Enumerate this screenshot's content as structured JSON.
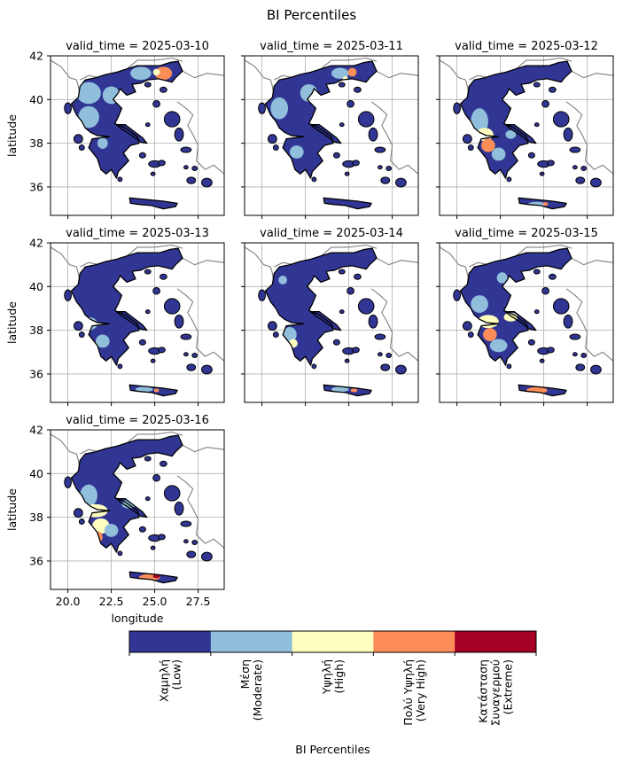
{
  "figure": {
    "title": "BI Percentiles"
  },
  "chart_data": [
    {
      "type": "heatmap",
      "title": "valid_time = 2025-03-10",
      "ylabel": "latitude",
      "xlabel": "",
      "xlim": [
        19,
        29
      ],
      "ylim": [
        34.7,
        42
      ],
      "grid": true,
      "dominant_categories": [
        "Χαμηλή (Low)",
        "Μέση (Moderate)",
        "Πολύ Υψηλή (Very High)"
      ]
    },
    {
      "type": "heatmap",
      "title": "valid_time = 2025-03-11",
      "ylabel": "",
      "xlabel": "",
      "xlim": [
        19,
        29
      ],
      "ylim": [
        34.7,
        42
      ],
      "grid": true,
      "dominant_categories": [
        "Χαμηλή (Low)",
        "Μέση (Moderate)",
        "Πολύ Υψηλή (Very High)"
      ]
    },
    {
      "type": "heatmap",
      "title": "valid_time = 2025-03-12",
      "ylabel": "",
      "xlabel": "",
      "xlim": [
        19,
        29
      ],
      "ylim": [
        34.7,
        42
      ],
      "grid": true,
      "dominant_categories": [
        "Χαμηλή (Low)",
        "Μέση (Moderate)",
        "Υψηλή (High)",
        "Πολύ Υψηλή (Very High)"
      ]
    },
    {
      "type": "heatmap",
      "title": "valid_time = 2025-03-13",
      "ylabel": "latitude",
      "xlabel": "",
      "xlim": [
        19,
        29
      ],
      "ylim": [
        34.7,
        42
      ],
      "grid": true,
      "dominant_categories": [
        "Χαμηλή (Low)",
        "Μέση (Moderate)"
      ]
    },
    {
      "type": "heatmap",
      "title": "valid_time = 2025-03-14",
      "ylabel": "",
      "xlabel": "",
      "xlim": [
        19,
        29
      ],
      "ylim": [
        34.7,
        42
      ],
      "grid": true,
      "dominant_categories": [
        "Χαμηλή (Low)",
        "Μέση (Moderate)",
        "Υψηλή (High)"
      ]
    },
    {
      "type": "heatmap",
      "title": "valid_time = 2025-03-15",
      "ylabel": "",
      "xlabel": "",
      "xlim": [
        19,
        29
      ],
      "ylim": [
        34.7,
        42
      ],
      "grid": true,
      "dominant_categories": [
        "Χαμηλή (Low)",
        "Μέση (Moderate)",
        "Υψηλή (High)",
        "Πολύ Υψηλή (Very High)"
      ]
    },
    {
      "type": "heatmap",
      "title": "valid_time = 2025-03-16",
      "ylabel": "latitude",
      "xlabel": "longitude",
      "xlim": [
        19,
        29
      ],
      "ylim": [
        34.7,
        42
      ],
      "grid": true,
      "dominant_categories": [
        "Χαμηλή (Low)",
        "Μέση (Moderate)",
        "Υψηλή (High)",
        "Πολύ Υψηλή (Very High)"
      ]
    }
  ],
  "axes": {
    "yticks": [
      36,
      38,
      40,
      42
    ],
    "xticks": [
      20.0,
      22.5,
      25.0,
      27.5
    ],
    "xtick_labels": [
      "20.0",
      "22.5",
      "25.0",
      "27.5"
    ],
    "ytick_labels": [
      "36",
      "38",
      "40",
      "42"
    ]
  },
  "colorbar": {
    "label": "BI Percentiles",
    "categories": [
      {
        "lines": [
          "Χαμηλή",
          "(Low)"
        ],
        "color": "#313695"
      },
      {
        "lines": [
          "Μέση",
          "(Moderate)"
        ],
        "color": "#91bfdb"
      },
      {
        "lines": [
          "Υψηλή",
          "(High)"
        ],
        "color": "#ffffbf"
      },
      {
        "lines": [
          "Πολύ Υψηλή",
          "(Very High)"
        ],
        "color": "#fc8d59"
      },
      {
        "lines": [
          "Κατάσταση",
          "Συναγερμού",
          "(Extreme)"
        ],
        "color": "#a50026"
      }
    ]
  },
  "colors": {
    "low": "#313695",
    "moderate": "#91bfdb",
    "high": "#ffffbf",
    "very_high": "#fc8d59",
    "extreme": "#a50026",
    "grid": "#b0b0b0",
    "borders": "#808080",
    "coast": "#000000"
  }
}
